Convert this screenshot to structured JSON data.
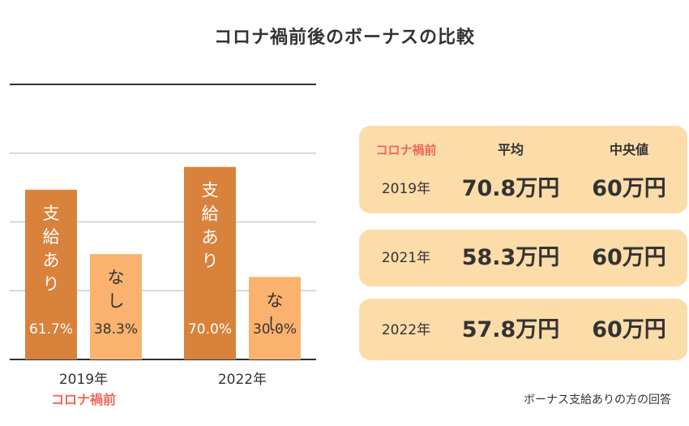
{
  "title": "コロナ禍前後のボーナスの比較",
  "colors": {
    "bar_yes": "#d9823b",
    "bar_no": "#fbb26e",
    "card_bg": "#fcdca9",
    "accent": "#f0645a",
    "gridline": "#cccccc",
    "axis": "#333333"
  },
  "chart_data": {
    "type": "bar",
    "categories": [
      "2019年",
      "2022年"
    ],
    "category_note": "コロナ禍前",
    "series": [
      {
        "name": "支給あり",
        "values": [
          61.7,
          70.0
        ],
        "labels": [
          "61.7%",
          "70.0%"
        ]
      },
      {
        "name": "なし",
        "values": [
          38.3,
          30.0
        ],
        "labels": [
          "38.3%",
          "30.0%"
        ]
      }
    ],
    "ylim": [
      0,
      100
    ],
    "grid": true,
    "legend": "none"
  },
  "table": {
    "headers": {
      "period": "コロナ禍前",
      "average": "平均",
      "median": "中央値"
    },
    "rows": [
      {
        "year": "2019年",
        "average": "70.8万円",
        "median": "60万円"
      },
      {
        "year": "2021年",
        "average": "58.3万円",
        "median": "60万円"
      },
      {
        "year": "2022年",
        "average": "57.8万円",
        "median": "60万円"
      }
    ]
  },
  "note": "ボーナス支給ありの方の回答"
}
